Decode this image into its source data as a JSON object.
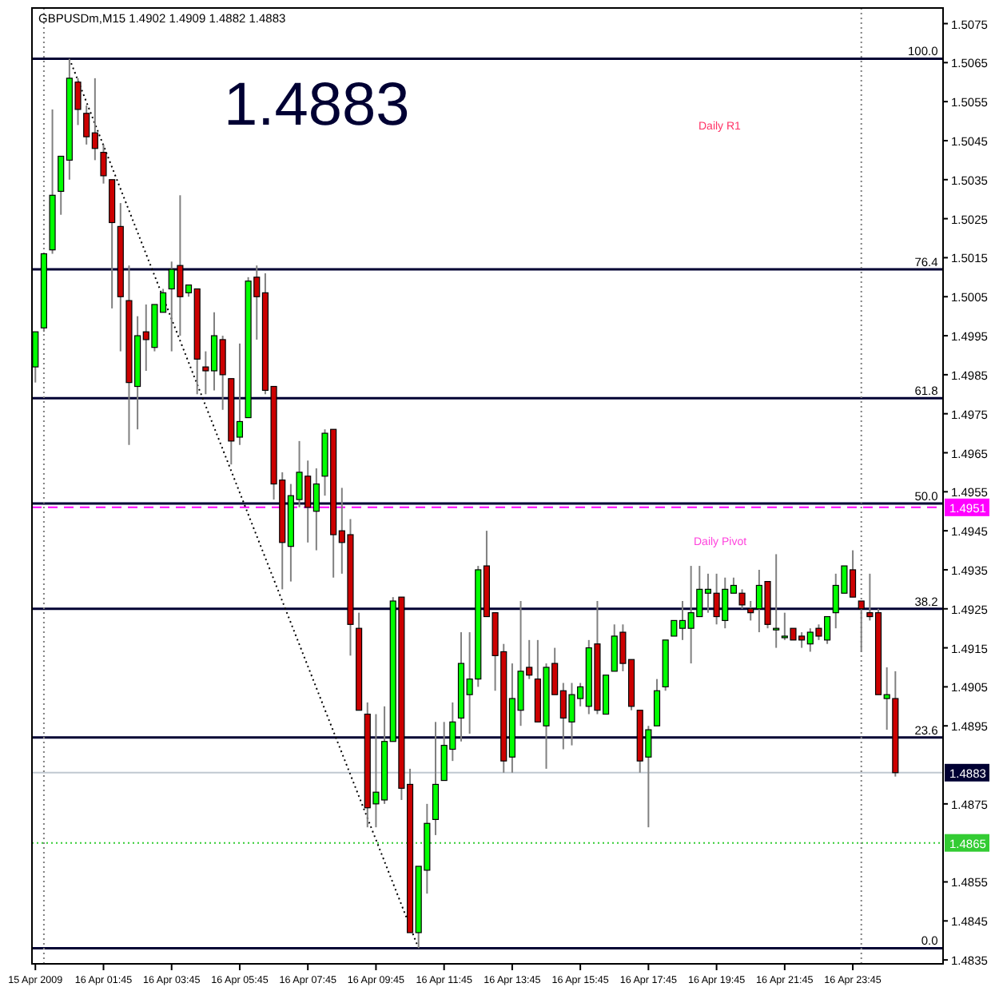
{
  "chart_data": {
    "type": "candlestick",
    "title": "GBPUSDm,M15 1.4902 1.4909 1.4882 1.4883",
    "x": [
      "2009-04-15T23:45",
      "2009-04-16T00:00",
      "2009-04-16T00:15",
      "2009-04-16T00:30",
      "2009-04-16T00:45",
      "2009-04-16T01:00",
      "2009-04-16T01:15",
      "2009-04-16T01:30",
      "2009-04-16T01:45",
      "2009-04-16T02:00",
      "2009-04-16T02:15",
      "2009-04-16T02:30",
      "2009-04-16T02:45",
      "2009-04-16T03:00",
      "2009-04-16T03:15",
      "2009-04-16T03:30",
      "2009-04-16T03:45",
      "2009-04-16T04:00",
      "2009-04-16T04:15",
      "2009-04-16T04:30",
      "2009-04-16T04:45",
      "2009-04-16T05:00",
      "2009-04-16T05:15",
      "2009-04-16T05:30",
      "2009-04-16T05:45",
      "2009-04-16T06:00",
      "2009-04-16T06:15",
      "2009-04-16T06:30",
      "2009-04-16T06:45",
      "2009-04-16T07:00",
      "2009-04-16T07:15",
      "2009-04-16T07:30",
      "2009-04-16T07:45",
      "2009-04-16T08:00",
      "2009-04-16T08:15",
      "2009-04-16T08:30",
      "2009-04-16T08:45",
      "2009-04-16T09:00",
      "2009-04-16T09:15",
      "2009-04-16T09:30",
      "2009-04-16T09:45",
      "2009-04-16T10:00",
      "2009-04-16T10:15",
      "2009-04-16T10:30",
      "2009-04-16T10:45",
      "2009-04-16T11:00",
      "2009-04-16T11:15",
      "2009-04-16T11:30",
      "2009-04-16T11:45",
      "2009-04-16T12:00",
      "2009-04-16T12:15",
      "2009-04-16T12:30",
      "2009-04-16T12:45",
      "2009-04-16T13:00",
      "2009-04-16T13:15",
      "2009-04-16T13:30",
      "2009-04-16T13:45",
      "2009-04-16T14:00",
      "2009-04-16T14:15",
      "2009-04-16T14:30",
      "2009-04-16T14:45",
      "2009-04-16T15:00",
      "2009-04-16T15:15",
      "2009-04-16T15:30",
      "2009-04-16T15:45",
      "2009-04-16T16:00",
      "2009-04-16T16:15",
      "2009-04-16T16:30",
      "2009-04-16T16:45",
      "2009-04-16T17:00",
      "2009-04-16T17:15",
      "2009-04-16T17:30",
      "2009-04-16T17:45",
      "2009-04-16T18:00",
      "2009-04-16T18:15",
      "2009-04-16T18:30",
      "2009-04-16T18:45",
      "2009-04-16T19:00",
      "2009-04-16T19:15",
      "2009-04-16T19:30",
      "2009-04-16T19:45",
      "2009-04-16T20:00",
      "2009-04-16T20:15",
      "2009-04-16T20:30",
      "2009-04-16T20:45",
      "2009-04-16T21:00",
      "2009-04-16T21:15",
      "2009-04-16T21:30",
      "2009-04-16T21:45",
      "2009-04-16T22:00",
      "2009-04-16T22:15",
      "2009-04-16T22:30",
      "2009-04-16T22:45",
      "2009-04-16T23:00",
      "2009-04-16T23:15",
      "2009-04-16T23:30",
      "2009-04-16T23:45",
      "2009-04-17T00:00",
      "2009-04-17T00:15",
      "2009-04-17T00:30",
      "2009-04-17T00:45",
      "2009-04-17T01:00"
    ],
    "ohlc": [
      [
        1.4987,
        1.4996,
        1.4983,
        1.4996
      ],
      [
        1.4997,
        1.5016,
        1.4996,
        1.5016
      ],
      [
        1.5017,
        1.5053,
        1.5016,
        1.5031
      ],
      [
        1.5032,
        1.5041,
        1.5026,
        1.5041
      ],
      [
        1.504,
        1.5066,
        1.5035,
        1.5061
      ],
      [
        1.506,
        1.5061,
        1.5049,
        1.5053
      ],
      [
        1.5052,
        1.5054,
        1.5044,
        1.5046
      ],
      [
        1.5047,
        1.5061,
        1.504,
        1.5043
      ],
      [
        1.5042,
        1.5044,
        1.5034,
        1.5036
      ],
      [
        1.5035,
        1.5035,
        1.5002,
        1.5024
      ],
      [
        1.5023,
        1.5029,
        1.4991,
        1.5005
      ],
      [
        1.5004,
        1.5013,
        1.4967,
        1.4983
      ],
      [
        1.4982,
        1.5,
        1.4971,
        1.4995
      ],
      [
        1.4996,
        1.5003,
        1.4986,
        1.4994
      ],
      [
        1.4992,
        1.5003,
        1.4991,
        1.5003
      ],
      [
        1.5001,
        1.5007,
        1.5001,
        1.5006
      ],
      [
        1.5007,
        1.5014,
        1.4991,
        1.5012
      ],
      [
        1.5013,
        1.5031,
        1.4995,
        1.5005
      ],
      [
        1.5006,
        1.5008,
        1.5005,
        1.5008
      ],
      [
        1.5007,
        1.5007,
        1.498,
        1.4989
      ],
      [
        1.4987,
        1.4991,
        1.498,
        1.4986
      ],
      [
        1.4986,
        1.5001,
        1.4981,
        1.4995
      ],
      [
        1.4994,
        1.4995,
        1.4976,
        1.4985
      ],
      [
        1.4984,
        1.4984,
        1.4962,
        1.4968
      ],
      [
        1.4969,
        1.4993,
        1.4967,
        1.4973
      ],
      [
        1.4974,
        1.501,
        1.4974,
        1.5009
      ],
      [
        1.501,
        1.5013,
        1.4994,
        1.5005
      ],
      [
        1.5006,
        1.5011,
        1.498,
        1.4981
      ],
      [
        1.4982,
        1.4982,
        1.4953,
        1.4957
      ],
      [
        1.4958,
        1.496,
        1.493,
        1.4942
      ],
      [
        1.4941,
        1.4957,
        1.4932,
        1.4954
      ],
      [
        1.4953,
        1.4968,
        1.4951,
        1.496
      ],
      [
        1.4959,
        1.4963,
        1.4942,
        1.4951
      ],
      [
        1.495,
        1.4961,
        1.494,
        1.4957
      ],
      [
        1.4959,
        1.4971,
        1.4954,
        1.497
      ],
      [
        1.4971,
        1.4971,
        1.4933,
        1.4944
      ],
      [
        1.4945,
        1.4956,
        1.4934,
        1.4942
      ],
      [
        1.4944,
        1.4948,
        1.4913,
        1.4921
      ],
      [
        1.492,
        1.4924,
        1.4899,
        1.4899
      ],
      [
        1.4898,
        1.4901,
        1.4869,
        1.4874
      ],
      [
        1.4875,
        1.4898,
        1.4869,
        1.4878
      ],
      [
        1.4876,
        1.49,
        1.4875,
        1.4891
      ],
      [
        1.4891,
        1.4928,
        1.4891,
        1.4927
      ],
      [
        1.4928,
        1.4928,
        1.4876,
        1.4879
      ],
      [
        1.488,
        1.4884,
        1.4842,
        1.4842
      ],
      [
        1.4842,
        1.4859,
        1.4838,
        1.4859
      ],
      [
        1.4858,
        1.4875,
        1.4852,
        1.487
      ],
      [
        1.4871,
        1.4896,
        1.4867,
        1.488
      ],
      [
        1.4881,
        1.4896,
        1.4881,
        1.489
      ],
      [
        1.4889,
        1.4901,
        1.4886,
        1.4896
      ],
      [
        1.4897,
        1.4919,
        1.4891,
        1.4911
      ],
      [
        1.4903,
        1.4919,
        1.4893,
        1.4907
      ],
      [
        1.4907,
        1.4936,
        1.4905,
        1.4935
      ],
      [
        1.4936,
        1.4945,
        1.4923,
        1.4923
      ],
      [
        1.4924,
        1.4924,
        1.4904,
        1.4913
      ],
      [
        1.4914,
        1.4916,
        1.4883,
        1.4886
      ],
      [
        1.4887,
        1.4911,
        1.4883,
        1.4902
      ],
      [
        1.4899,
        1.4927,
        1.4895,
        1.4909
      ],
      [
        1.491,
        1.4917,
        1.4907,
        1.4908
      ],
      [
        1.4907,
        1.4917,
        1.4896,
        1.4896
      ],
      [
        1.4895,
        1.4911,
        1.4884,
        1.491
      ],
      [
        1.4911,
        1.4915,
        1.4903,
        1.4903
      ],
      [
        1.4904,
        1.4906,
        1.4889,
        1.4897
      ],
      [
        1.4896,
        1.4906,
        1.489,
        1.4903
      ],
      [
        1.4902,
        1.4906,
        1.49,
        1.4905
      ],
      [
        1.49,
        1.4917,
        1.4898,
        1.4915
      ],
      [
        1.4916,
        1.4927,
        1.4898,
        1.4899
      ],
      [
        1.4898,
        1.4908,
        1.4898,
        1.4908
      ],
      [
        1.4909,
        1.4921,
        1.4909,
        1.4918
      ],
      [
        1.4919,
        1.4921,
        1.4909,
        1.4911
      ],
      [
        1.4912,
        1.4912,
        1.4899,
        1.49
      ],
      [
        1.4899,
        1.4899,
        1.4883,
        1.4886
      ],
      [
        1.4887,
        1.4895,
        1.4869,
        1.4894
      ],
      [
        1.4895,
        1.4907,
        1.4895,
        1.4904
      ],
      [
        1.4905,
        1.4917,
        1.4904,
        1.4917
      ],
      [
        1.4918,
        1.4922,
        1.4918,
        1.4922
      ],
      [
        1.492,
        1.4927,
        1.4917,
        1.4922
      ],
      [
        1.492,
        1.4936,
        1.4911,
        1.4924
      ],
      [
        1.4923,
        1.4936,
        1.4923,
        1.493
      ],
      [
        1.4929,
        1.4934,
        1.4924,
        1.493
      ],
      [
        1.4929,
        1.4934,
        1.4921,
        1.4923
      ],
      [
        1.4922,
        1.4933,
        1.492,
        1.493
      ],
      [
        1.4929,
        1.4933,
        1.4929,
        1.4931
      ],
      [
        1.4929,
        1.493,
        1.4925,
        1.4926
      ],
      [
        1.4925,
        1.4927,
        1.4922,
        1.4924
      ],
      [
        1.4925,
        1.4935,
        1.4919,
        1.4931
      ],
      [
        1.4932,
        1.4932,
        1.492,
        1.4921
      ],
      [
        1.492,
        1.4939,
        1.4915,
        1.492
      ],
      [
        1.4918,
        1.4924,
        1.4917,
        1.4918
      ],
      [
        1.492,
        1.492,
        1.4917,
        1.4917
      ],
      [
        1.4918,
        1.4919,
        1.4915,
        1.4917
      ],
      [
        1.4916,
        1.492,
        1.4914,
        1.4919
      ],
      [
        1.492,
        1.4921,
        1.4917,
        1.4918
      ],
      [
        1.4917,
        1.4923,
        1.4916,
        1.4923
      ],
      [
        1.4924,
        1.4934,
        1.492,
        1.4931
      ],
      [
        1.4929,
        1.4936,
        1.4929,
        1.4936
      ],
      [
        1.4935,
        1.494,
        1.4928,
        1.4928
      ],
      [
        1.4927,
        1.4927,
        1.4914,
        1.4925
      ],
      [
        1.4924,
        1.4934,
        1.4922,
        1.4923
      ],
      [
        1.4924,
        1.4925,
        1.4903,
        1.4903
      ],
      [
        1.4902,
        1.491,
        1.4894,
        1.4903
      ],
      [
        1.4902,
        1.4909,
        1.4882,
        1.4883
      ]
    ],
    "colors": [
      "#00ff00",
      "#00ff00",
      "#00ff00",
      "#00ff00",
      "#00ff00",
      "#cc0000",
      "#cc0000",
      "#cc0000",
      "#cc0000",
      "#cc0000",
      "#cc0000",
      "#cc0000",
      "#00ff00",
      "#cc0000",
      "#00ff00",
      "#00ff00",
      "#00ff00",
      "#cc0000",
      "#00ff00",
      "#cc0000",
      "#cc0000",
      "#00ff00",
      "#cc0000",
      "#cc0000",
      "#00ff00",
      "#00ff00",
      "#cc0000",
      "#cc0000",
      "#cc0000",
      "#cc0000",
      "#00ff00",
      "#00ff00",
      "#cc0000",
      "#00ff00",
      "#00ff00",
      "#cc0000",
      "#cc0000",
      "#cc0000",
      "#cc0000",
      "#cc0000",
      "#00ff00",
      "#00ff00",
      "#00ff00",
      "#cc0000",
      "#cc0000",
      "#00ff00",
      "#00ff00",
      "#00ff00",
      "#00ff00",
      "#00ff00",
      "#00ff00",
      "#00ff00",
      "#00ff00",
      "#cc0000",
      "#cc0000",
      "#cc0000",
      "#00ff00",
      "#00ff00",
      "#cc0000",
      "#cc0000",
      "#00ff00",
      "#cc0000",
      "#cc0000",
      "#00ff00",
      "#00ff00",
      "#00ff00",
      "#cc0000",
      "#00ff00",
      "#00ff00",
      "#cc0000",
      "#cc0000",
      "#cc0000",
      "#00ff00",
      "#00ff00",
      "#00ff00",
      "#00ff00",
      "#00ff00",
      "#00ff00",
      "#00ff00",
      "#00ff00",
      "#cc0000",
      "#00ff00",
      "#00ff00",
      "#cc0000",
      "#cc0000",
      "#00ff00",
      "#cc0000",
      "#00ff00",
      "#00ff00",
      "#cc0000",
      "#cc0000",
      "#00ff00",
      "#cc0000",
      "#00ff00",
      "#00ff00",
      "#00ff00",
      "#cc0000",
      "#cc0000",
      "#cc0000",
      "#cc0000",
      "#00ff00",
      "#cc0000"
    ],
    "series": [
      {
        "type": "line",
        "x": [
          "2009-04-16T00:45",
          "2009-04-16T11:00"
        ],
        "values": [
          1.5066,
          1.4838
        ],
        "color": "#000000",
        "line_style": "dotted"
      }
    ],
    "xlim": [
      "2009-04-15T23:39",
      "2009-04-17T02:24"
    ],
    "xticks": [
      {
        "value": "2009-04-15T23:45",
        "label": "15 Apr 2009"
      },
      {
        "value": "2009-04-16T01:45",
        "label": "16 Apr 01:45"
      },
      {
        "value": "2009-04-16T03:45",
        "label": "16 Apr 03:45"
      },
      {
        "value": "2009-04-16T05:45",
        "label": "16 Apr 05:45"
      },
      {
        "value": "2009-04-16T07:45",
        "label": "16 Apr 07:45"
      },
      {
        "value": "2009-04-16T09:45",
        "label": "16 Apr 09:45"
      },
      {
        "value": "2009-04-16T11:45",
        "label": "16 Apr 11:45"
      },
      {
        "value": "2009-04-16T13:45",
        "label": "16 Apr 13:45"
      },
      {
        "value": "2009-04-16T15:45",
        "label": "16 Apr 15:45"
      },
      {
        "value": "2009-04-16T17:45",
        "label": "16 Apr 17:45"
      },
      {
        "value": "2009-04-16T19:45",
        "label": "16 Apr 19:45"
      },
      {
        "value": "2009-04-16T21:45",
        "label": "16 Apr 21:45"
      },
      {
        "value": "2009-04-16T23:45",
        "label": "16 Apr 23:45"
      }
    ],
    "ylim": [
      1.4834,
      1.5079
    ],
    "yticks": [
      1.5075,
      1.5065,
      1.5055,
      1.5045,
      1.5035,
      1.5025,
      1.5015,
      1.5005,
      1.4995,
      1.4985,
      1.4975,
      1.4965,
      1.4955,
      1.4945,
      1.4935,
      1.4925,
      1.4915,
      1.4905,
      1.4895,
      1.4875,
      1.4855,
      1.4845,
      1.4835
    ],
    "ref_lines": [
      {
        "axis": "y",
        "value": 1.5066
      },
      {
        "axis": "y",
        "value": 1.5012
      },
      {
        "axis": "y",
        "value": 1.4979
      },
      {
        "axis": "y",
        "value": 1.4952
      },
      {
        "axis": "y",
        "value": 1.4925
      },
      {
        "axis": "y",
        "value": 1.4892
      },
      {
        "axis": "y",
        "value": 1.4838
      },
      {
        "axis": "y",
        "value": 1.4951,
        "label": "1.4951",
        "color": "#ff00ff",
        "line_style": "dashed"
      },
      {
        "axis": "y",
        "value": 1.4883,
        "label": "1.4883",
        "color": "#c0c8d0"
      },
      {
        "axis": "y",
        "value": 1.4865,
        "label": "1.4865",
        "color": "#33cc33",
        "line_style": "dotted"
      },
      {
        "axis": "x",
        "value": "2009-04-16T00:00",
        "color": "#808080",
        "line_style": "dotted"
      },
      {
        "axis": "x",
        "value": "2009-04-17T00:00",
        "color": "#808080",
        "line_style": "dotted"
      }
    ],
    "annotations": [
      "1.4883",
      "Daily R1",
      "Daily Pivot",
      {
        "text": "100.0",
        "x": "2009-04-17T02:15",
        "y": 1.5066
      },
      {
        "text": "76.4",
        "x": "2009-04-17T02:15",
        "y": 1.5012
      },
      {
        "text": "61.8",
        "x": "2009-04-17T02:15",
        "y": 1.4979
      },
      {
        "text": "50.0",
        "x": "2009-04-17T02:15",
        "y": 1.4952
      },
      {
        "text": "38.2",
        "x": "2009-04-17T02:15",
        "y": 1.4925
      },
      {
        "text": "23.6",
        "x": "2009-04-17T02:15",
        "y": 1.4892
      },
      {
        "text": "0.0",
        "x": "2009-04-17T02:15",
        "y": 1.4838
      }
    ]
  }
}
